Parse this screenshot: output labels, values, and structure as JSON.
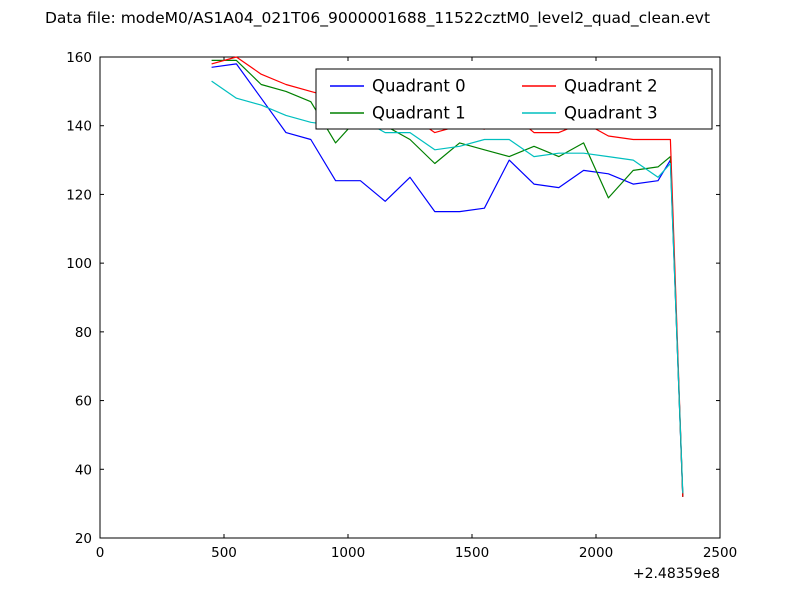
{
  "figure": {
    "title": "Data file: modeM0/AS1A04_021T06_9000001688_11522cztM0_level2_quad_clean.evt",
    "background": "#ffffff",
    "axes_color": "#000000"
  },
  "chart_data": {
    "type": "line",
    "title": "Data file: modeM0/AS1A04_021T06_9000001688_11522cztM0_level2_quad_clean.evt",
    "xlabel": "",
    "ylabel": "",
    "xlim": [
      0,
      2500
    ],
    "ylim": [
      20,
      160
    ],
    "x_ticks": [
      0,
      500,
      1000,
      1500,
      2000,
      2500
    ],
    "y_ticks": [
      20,
      40,
      60,
      80,
      100,
      120,
      140,
      160
    ],
    "x_offset_label": "+2.48359e8",
    "grid": false,
    "legend": {
      "position": "upper center",
      "columns": 2,
      "frame": true
    },
    "x": [
      450,
      550,
      650,
      750,
      850,
      950,
      1050,
      1150,
      1250,
      1350,
      1450,
      1550,
      1650,
      1750,
      1850,
      1950,
      2050,
      2150,
      2250,
      2300,
      2350
    ],
    "series": [
      {
        "name": "Quadrant 0",
        "color": "#0000ff",
        "values": [
          157,
          158,
          148,
          138,
          136,
          124,
          124,
          118,
          125,
          115,
          115,
          116,
          130,
          123,
          122,
          127,
          126,
          123,
          124,
          130,
          32
        ]
      },
      {
        "name": "Quadrant 1",
        "color": "#008000",
        "values": [
          159,
          159,
          152,
          150,
          147,
          135,
          143,
          140,
          136,
          129,
          135,
          133,
          131,
          134,
          131,
          135,
          119,
          127,
          128,
          131,
          32
        ]
      },
      {
        "name": "Quadrant 2",
        "color": "#ff0000",
        "values": [
          158,
          160,
          155,
          152,
          150,
          148,
          146,
          143,
          143,
          138,
          140,
          139,
          144,
          138,
          138,
          141,
          137,
          136,
          136,
          136,
          32
        ]
      },
      {
        "name": "Quadrant 3",
        "color": "#00bfbf",
        "values": [
          153,
          148,
          146,
          143,
          141,
          140,
          142,
          138,
          138,
          133,
          134,
          136,
          136,
          131,
          132,
          132,
          131,
          130,
          125,
          129,
          33
        ]
      }
    ]
  }
}
